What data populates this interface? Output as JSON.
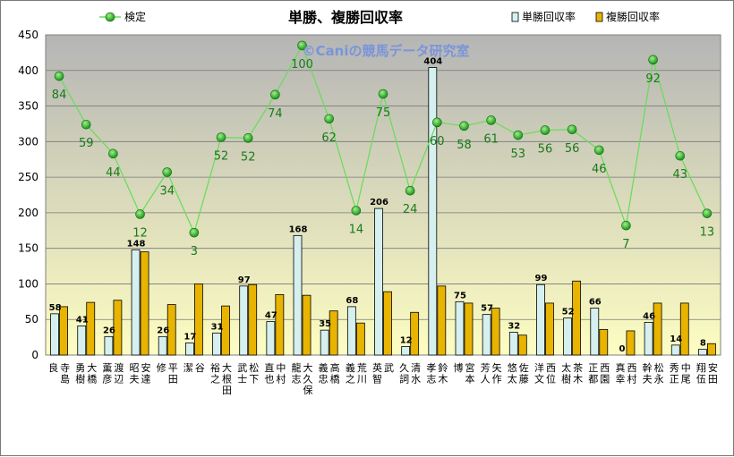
{
  "chart_data": {
    "type": "bar",
    "title": "単勝、複勝回収率",
    "watermark": "©Caniの競馬データ研究室",
    "ylim": [
      0,
      450
    ],
    "yticks": [
      0,
      50,
      100,
      150,
      200,
      250,
      300,
      350,
      400,
      450
    ],
    "grid": true,
    "legend_placement": "top",
    "categories": [
      "寺島 良",
      "大橋 勇樹",
      "渡辺 薫彦",
      "安達 昭夫",
      "平田 修",
      "谷 潔",
      "大根田 裕之",
      "松下 武士",
      "中村 直也",
      "大久保 龍志",
      "高橋 義忠",
      "荒川 義之",
      "武 英智",
      "清水 久詞",
      "鈴木 孝志",
      "宮本 博",
      "矢作 芳人",
      "佐藤 悠太",
      "西位 洋文",
      "茶木 太樹",
      "西園 正都",
      "西村 真幸",
      "松永 幹夫",
      "中尾 秀正",
      "安田 翔伍"
    ],
    "series": [
      {
        "name": "単勝回収率",
        "type": "bar",
        "color": "#d6f0f0",
        "values": [
          58,
          41,
          26,
          148,
          26,
          17,
          31,
          97,
          47,
          168,
          35,
          68,
          206,
          12,
          404,
          75,
          57,
          32,
          99,
          52,
          66,
          0,
          46,
          14,
          8
        ],
        "labels": [
          "58",
          "41",
          "26",
          "148",
          "26",
          "17",
          "31",
          "97",
          "47",
          "168",
          "35",
          "68",
          "206",
          "12",
          "404",
          "75",
          "57",
          "32",
          "99",
          "52",
          "66",
          "0",
          "46",
          "14",
          "8"
        ]
      },
      {
        "name": "複勝回収率",
        "type": "bar",
        "color": "#e8b400",
        "values": [
          68,
          74,
          77,
          145,
          71,
          100,
          69,
          99,
          85,
          84,
          62,
          45,
          89,
          60,
          97,
          73,
          66,
          28,
          73,
          104,
          36,
          34,
          73,
          73,
          16
        ]
      },
      {
        "name": "検定",
        "type": "line",
        "color": "#22aa22",
        "values": [
          392,
          324,
          283,
          198,
          257,
          172,
          306,
          305,
          366,
          435,
          332,
          203,
          367,
          231,
          327,
          322,
          330,
          309,
          316,
          317,
          288,
          182,
          415,
          280,
          199
        ],
        "labels": [
          "84",
          "59",
          "44",
          "12",
          "34",
          "3",
          "52",
          "52",
          "74",
          "100",
          "62",
          "14",
          "75",
          "24",
          "60",
          "58",
          "61",
          "53",
          "56",
          "56",
          "46",
          "7",
          "92",
          "43",
          "13"
        ]
      }
    ]
  },
  "colors": {
    "plot_top": "#b5b5b5",
    "plot_bottom": "#fdfdc2",
    "grid": "#7a7a7a",
    "line": "#66dd55",
    "marker": "#1aa51a",
    "line_label": "#1a7a1a"
  }
}
